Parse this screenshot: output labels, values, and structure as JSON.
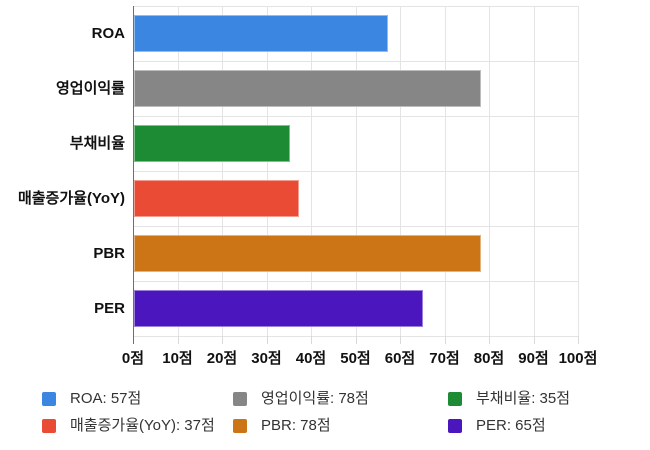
{
  "chart_data": {
    "type": "bar",
    "orientation": "horizontal",
    "title": "",
    "categories": [
      "ROA",
      "영업이익률",
      "부채비율",
      "매출증가율(YoY)",
      "PBR",
      "PER"
    ],
    "values": [
      57,
      78,
      35,
      37,
      78,
      65
    ],
    "colors": [
      "#3a86e0",
      "#868686",
      "#1c8b34",
      "#e94b35",
      "#cb7516",
      "#4b16be"
    ],
    "xlim": [
      0,
      100
    ],
    "x_ticks": [
      0,
      10,
      20,
      30,
      40,
      50,
      60,
      70,
      80,
      90,
      100
    ],
    "x_tick_labels": [
      "0점",
      "10점",
      "20점",
      "30점",
      "40점",
      "50점",
      "60점",
      "70점",
      "80점",
      "90점",
      "100점"
    ],
    "unit_suffix": "점",
    "grid": true,
    "legend_position": "bottom",
    "legend_items": [
      {
        "label": "ROA: 57점",
        "color": "#3a86e0"
      },
      {
        "label": "영업이익률: 78점",
        "color": "#868686"
      },
      {
        "label": "부채비율: 35점",
        "color": "#1c8b34"
      },
      {
        "label": "매출증가율(YoY): 37점",
        "color": "#e94b35"
      },
      {
        "label": "PBR: 78점",
        "color": "#cb7516"
      },
      {
        "label": "PER: 65점",
        "color": "#4b16be"
      }
    ],
    "style": {
      "gridline_color": "#e4e4e4",
      "axis_line_color": "#6f6f6f",
      "label_color": "#111111",
      "legend_text_color": "#333333",
      "background": "#ffffff"
    }
  }
}
